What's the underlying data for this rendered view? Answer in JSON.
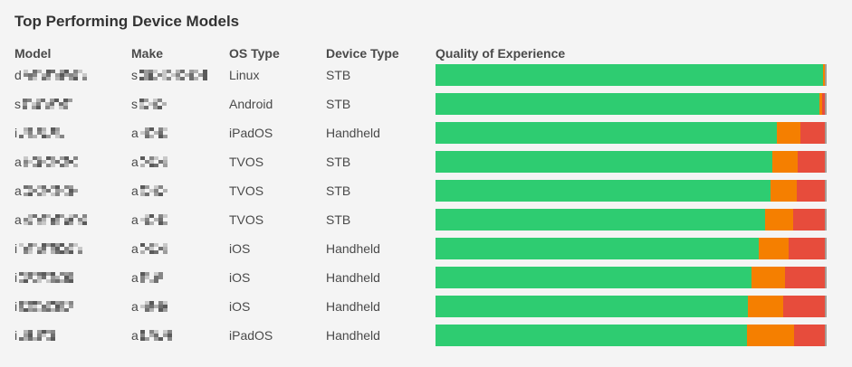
{
  "panel": {
    "title": "Top Performing Device Models"
  },
  "table": {
    "headers": {
      "model": "Model",
      "make": "Make",
      "os_type": "OS Type",
      "device_type": "Device Type",
      "qoe": "Quality of Experience"
    },
    "rows": [
      {
        "model_initial": "d",
        "model_redacted_width": 70,
        "make_initial": "s",
        "make_redacted_width": 75,
        "os_type": "Linux",
        "device_type": "STB",
        "qoe_pct": {
          "green": 99.6,
          "orange": 0.4,
          "red": 0.0
        }
      },
      {
        "model_initial": "s",
        "model_redacted_width": 55,
        "make_initial": "s",
        "make_redacted_width": 30,
        "os_type": "Android",
        "device_type": "STB",
        "qoe_pct": {
          "green": 98.5,
          "orange": 0.8,
          "red": 0.7
        }
      },
      {
        "model_initial": "i",
        "model_redacted_width": 52,
        "make_initial": "a",
        "make_redacted_width": 30,
        "os_type": "iPadOS",
        "device_type": "Handheld",
        "qoe_pct": {
          "green": 87.6,
          "orange": 6.2,
          "red": 6.2
        }
      },
      {
        "model_initial": "a",
        "model_redacted_width": 58,
        "make_initial": "a",
        "make_redacted_width": 28,
        "os_type": "TVOS",
        "device_type": "STB",
        "qoe_pct": {
          "green": 86.6,
          "orange": 6.4,
          "red": 7.0
        }
      },
      {
        "model_initial": "a",
        "model_redacted_width": 62,
        "make_initial": "a",
        "make_redacted_width": 30,
        "os_type": "TVOS",
        "device_type": "STB",
        "qoe_pct": {
          "green": 86.0,
          "orange": 6.7,
          "red": 7.3
        }
      },
      {
        "model_initial": "a",
        "model_redacted_width": 68,
        "make_initial": "a",
        "make_redacted_width": 28,
        "os_type": "TVOS",
        "device_type": "STB",
        "qoe_pct": {
          "green": 84.7,
          "orange": 7.1,
          "red": 8.2
        }
      },
      {
        "model_initial": "i",
        "model_redacted_width": 68,
        "make_initial": "a",
        "make_redacted_width": 32,
        "os_type": "iOS",
        "device_type": "Handheld",
        "qoe_pct": {
          "green": 83.1,
          "orange": 7.6,
          "red": 9.3
        }
      },
      {
        "model_initial": "i",
        "model_redacted_width": 60,
        "make_initial": "a",
        "make_redacted_width": 25,
        "os_type": "iOS",
        "device_type": "Handheld",
        "qoe_pct": {
          "green": 81.2,
          "orange": 8.5,
          "red": 10.3
        }
      },
      {
        "model_initial": "i",
        "model_redacted_width": 58,
        "make_initial": "a",
        "make_redacted_width": 30,
        "os_type": "iOS",
        "device_type": "Handheld",
        "qoe_pct": {
          "green": 80.2,
          "orange": 9.0,
          "red": 10.8
        }
      },
      {
        "model_initial": "i",
        "model_redacted_width": 42,
        "make_initial": "a",
        "make_redacted_width": 34,
        "os_type": "iPadOS",
        "device_type": "Handheld",
        "qoe_pct": {
          "green": 79.9,
          "orange": 12.3,
          "red": 7.8
        }
      }
    ]
  },
  "colors": {
    "green": "#2ecc71",
    "orange": "#f57f00",
    "red": "#e74c3c",
    "background": "#f4f4f4",
    "bar_edge": "#a59d97",
    "text": "#4a4a4a",
    "heading": "#333333"
  },
  "chart_data": {
    "type": "bar",
    "orientation": "horizontal",
    "stacked": true,
    "title": "Quality of Experience",
    "unit": "percent",
    "xlim": [
      0,
      100
    ],
    "grid": false,
    "legend": false,
    "categories": [
      "Linux / STB",
      "Android / STB",
      "iPadOS / Handheld",
      "TVOS / STB",
      "TVOS / STB",
      "TVOS / STB",
      "iOS / Handheld",
      "iOS / Handheld",
      "iOS / Handheld",
      "iPadOS / Handheld"
    ],
    "series": [
      {
        "name": "green",
        "color": "#2ecc71",
        "values": [
          99.6,
          98.5,
          87.6,
          86.6,
          86.0,
          84.7,
          83.1,
          81.2,
          80.2,
          79.9
        ]
      },
      {
        "name": "orange",
        "color": "#f57f00",
        "values": [
          0.4,
          0.8,
          6.2,
          6.4,
          6.7,
          7.1,
          7.6,
          8.5,
          9.0,
          12.3
        ]
      },
      {
        "name": "red",
        "color": "#e74c3c",
        "values": [
          0.0,
          0.7,
          6.2,
          7.0,
          7.3,
          8.2,
          9.3,
          10.3,
          10.8,
          7.8
        ]
      }
    ]
  }
}
